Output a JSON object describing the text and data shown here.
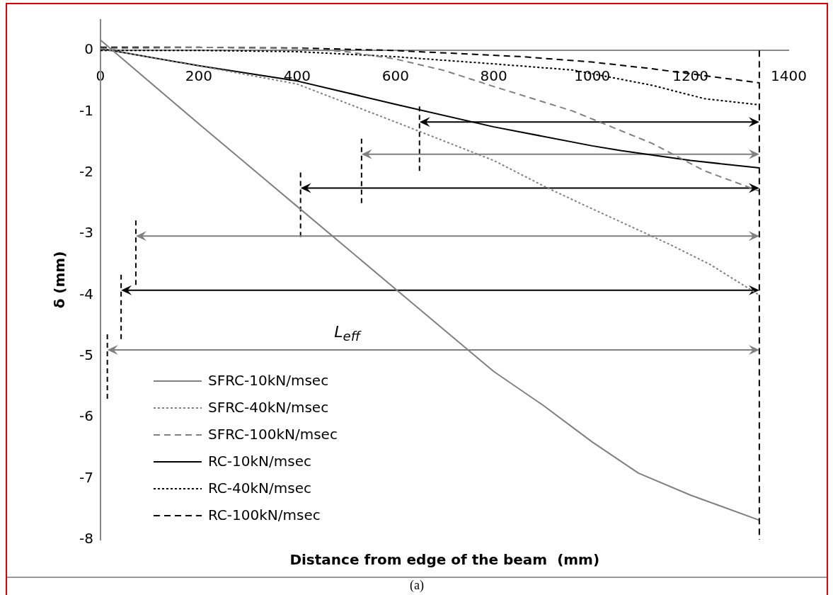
{
  "chart_data": {
    "type": "line",
    "xlabel": "Distance from edge of the beam  (mm)",
    "ylabel": "δ (mm)",
    "xlim": [
      0,
      1400
    ],
    "xticks": [
      0,
      200,
      400,
      600,
      800,
      1000,
      1200,
      1400
    ],
    "ylim": [
      -8,
      0.5
    ],
    "yticks": [
      0,
      -1,
      -2,
      -3,
      -4,
      -5,
      -6,
      -7,
      -8
    ],
    "grid": false,
    "legend": "bottom left",
    "series": [
      {
        "name": "SFRC-10kN/msec",
        "color": "#808080",
        "line_style": "solid",
        "x": [
          0,
          200,
          400,
          600,
          800,
          900,
          960,
          1000,
          1094,
          1200,
          1340
        ],
        "values": [
          0.17,
          -1.2,
          -2.55,
          -3.9,
          -5.25,
          -5.8,
          -6.16,
          -6.4,
          -6.91,
          -7.27,
          -7.68
        ]
      },
      {
        "name": "SFRC-40kN/msec",
        "color": "#808080",
        "line_style": "dotted",
        "x": [
          0,
          200,
          400,
          600,
          800,
          907,
          1000,
          1160,
          1240,
          1340
        ],
        "values": [
          0.03,
          -0.25,
          -0.55,
          -1.17,
          -1.8,
          -2.24,
          -2.59,
          -3.18,
          -3.5,
          -4.0
        ]
      },
      {
        "name": "SFRC-100kN/msec",
        "color": "#808080",
        "line_style": "dashed",
        "x": [
          0,
          200,
          400,
          500,
          600,
          700,
          800,
          960,
          1122,
          1229,
          1340
        ],
        "values": [
          0.03,
          0.05,
          0.03,
          -0.02,
          -0.14,
          -0.33,
          -0.59,
          -0.99,
          -1.52,
          -1.97,
          -2.3
        ]
      },
      {
        "name": "RC-10kN/msec",
        "color": "#000000",
        "line_style": "solid",
        "x": [
          0,
          200,
          400,
          600,
          800,
          1000,
          1060,
          1200,
          1340
        ],
        "values": [
          0.03,
          -0.25,
          -0.5,
          -0.88,
          -1.25,
          -1.56,
          -1.64,
          -1.8,
          -1.92
        ]
      },
      {
        "name": "RC-40kN/msec",
        "color": "#000000",
        "line_style": "dotted",
        "x": [
          0,
          200,
          400,
          594,
          800,
          960,
          1122,
          1229,
          1340
        ],
        "values": [
          0,
          0,
          -0.02,
          -0.1,
          -0.22,
          -0.32,
          -0.57,
          -0.79,
          -0.89
        ]
      },
      {
        "name": "RC-100kN/msec",
        "color": "#000000",
        "line_style": "dashed",
        "x": [
          0,
          200,
          400,
          594,
          853,
          1000,
          1122,
          1340
        ],
        "values": [
          0.05,
          0.05,
          0.04,
          0,
          -0.1,
          -0.19,
          -0.3,
          -0.53
        ]
      }
    ],
    "ref_lines": [
      {
        "axis": "x",
        "value": 1340,
        "color": "#000000",
        "line_style": "dashed"
      }
    ],
    "annotations": [
      "L$_{eff}$",
      "(a)"
    ]
  }
}
